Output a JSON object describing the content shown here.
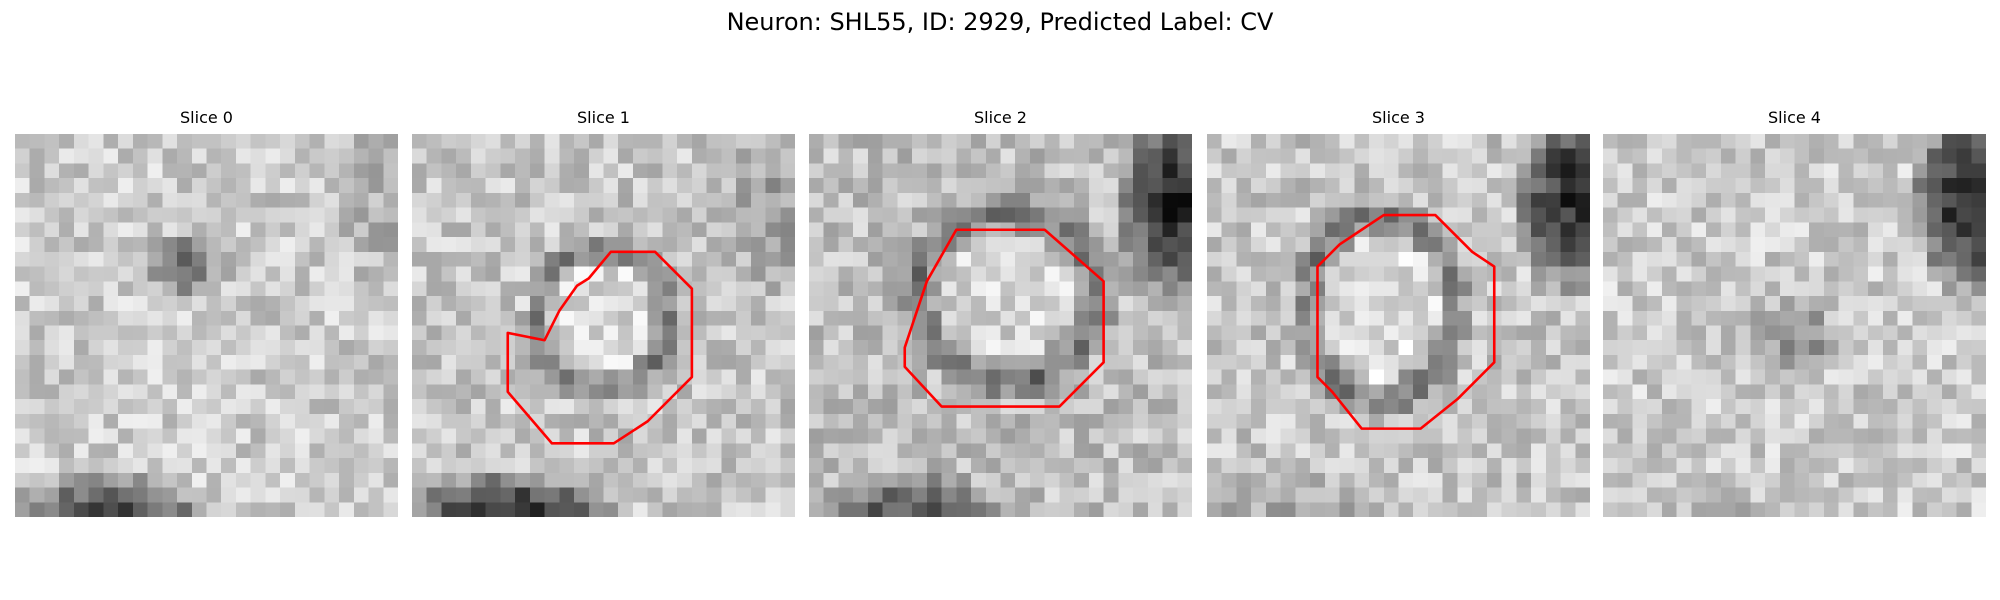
{
  "figure": {
    "title": "Neuron: SHL55, ID: 2929, Predicted Label: CV"
  },
  "colors": {
    "contour": "#ff0000",
    "background": "#ffffff"
  },
  "panels": [
    {
      "title": "Slice 0"
    },
    {
      "title": "Slice 1"
    },
    {
      "title": "Slice 2"
    },
    {
      "title": "Slice 3"
    },
    {
      "title": "Slice 4"
    }
  ]
}
